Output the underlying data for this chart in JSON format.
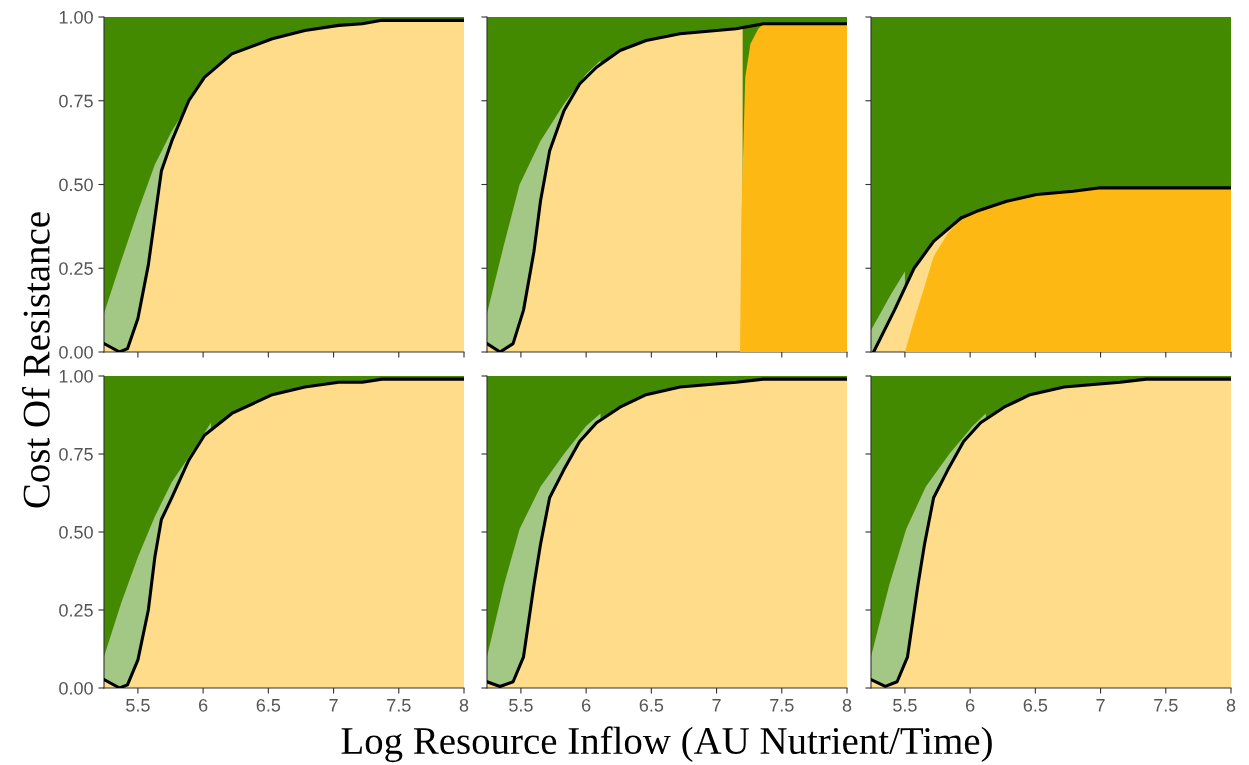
{
  "chart_data": [
    {
      "type": "area",
      "ylabel": "Cost Of Resistance",
      "xlim": [
        5.24,
        8
      ],
      "ylim": [
        0,
        1
      ],
      "tick_labels": "y",
      "xticks": [
        {
          "value": 5.5,
          "label": null
        },
        {
          "value": 6,
          "label": null
        },
        {
          "value": 6.5,
          "label": null
        },
        {
          "value": 7,
          "label": null
        },
        {
          "value": 7.5,
          "label": null
        },
        {
          "value": 8,
          "label": null
        }
      ],
      "yticks": [
        {
          "value": 0,
          "label": "0.00"
        },
        {
          "value": 0.25,
          "label": "0.25"
        },
        {
          "value": 0.5,
          "label": "0.50"
        },
        {
          "value": 0.75,
          "label": "0.75"
        },
        {
          "value": 1,
          "label": "1.00"
        }
      ],
      "bands": [
        {
          "axis": "y",
          "from": 0,
          "to": 1,
          "color": "#438a00"
        }
      ],
      "series": [
        {
          "color": "#a3c785",
          "x": [
            5.24,
            5.37,
            5.5,
            5.63,
            5.76,
            5.89,
            6.06
          ],
          "values": [
            0.115,
            0.27,
            0.42,
            0.56,
            0.66,
            0.74,
            0.845
          ]
        },
        {
          "color": "#fedc8a",
          "line_style": "solid",
          "x": [
            5.24,
            5.36,
            5.42,
            5.5,
            5.58,
            5.63,
            5.68,
            5.76,
            5.89,
            6.01,
            6.22,
            6.53,
            6.78,
            7.04,
            7.22,
            7.37,
            8.0
          ],
          "values": [
            0.025,
            0.0,
            0.01,
            0.1,
            0.26,
            0.4,
            0.54,
            0.63,
            0.75,
            0.82,
            0.89,
            0.935,
            0.96,
            0.975,
            0.98,
            0.99,
            0.99
          ]
        }
      ]
    },
    {
      "type": "area",
      "xlim": [
        5.24,
        8
      ],
      "ylim": [
        0,
        1
      ],
      "tick_labels": false,
      "xticks": [
        {
          "value": 5.5,
          "label": null
        },
        {
          "value": 6,
          "label": null
        },
        {
          "value": 6.5,
          "label": null
        },
        {
          "value": 7,
          "label": null
        },
        {
          "value": 7.5,
          "label": null
        },
        {
          "value": 8,
          "label": null
        }
      ],
      "yticks": [
        {
          "value": 0,
          "label": null
        },
        {
          "value": 0.25,
          "label": null
        },
        {
          "value": 0.5,
          "label": null
        },
        {
          "value": 0.75,
          "label": null
        },
        {
          "value": 1,
          "label": null
        }
      ],
      "bands": [
        {
          "axis": "y",
          "from": 0,
          "to": 1,
          "color": "#438a00"
        }
      ],
      "series": [
        {
          "color": "#a3c785",
          "x": [
            5.24,
            5.37,
            5.49,
            5.65,
            5.83,
            6.0,
            6.11
          ],
          "values": [
            0.115,
            0.32,
            0.5,
            0.63,
            0.74,
            0.83,
            0.87
          ]
        },
        {
          "color": "#fedc8a",
          "x": [
            5.24,
            5.34,
            5.44,
            5.52,
            5.6,
            5.65,
            5.72,
            5.83,
            5.95,
            6.08,
            6.26,
            6.46,
            6.72,
            7.15,
            7.2
          ],
          "values": [
            0.025,
            0.0,
            0.025,
            0.125,
            0.3,
            0.45,
            0.6,
            0.72,
            0.8,
            0.85,
            0.9,
            0.93,
            0.95,
            0.965,
            0.97
          ]
        },
        {
          "color": "#fdb813",
          "x": [
            7.18,
            7.19,
            7.22,
            7.26,
            7.32,
            7.36,
            8.0
          ],
          "values": [
            0.0,
            0.4,
            0.82,
            0.92,
            0.965,
            0.98,
            0.98
          ]
        },
        {
          "type": "line",
          "color": "#000000",
          "x": [
            5.24,
            5.34,
            5.44,
            5.52,
            5.6,
            5.65,
            5.72,
            5.83,
            5.95,
            6.08,
            6.26,
            6.46,
            6.72,
            7.15,
            7.36,
            8.0
          ],
          "values": [
            0.025,
            0.0,
            0.025,
            0.125,
            0.3,
            0.45,
            0.6,
            0.72,
            0.8,
            0.85,
            0.9,
            0.93,
            0.95,
            0.965,
            0.98,
            0.98
          ]
        }
      ]
    },
    {
      "type": "area",
      "xlim": [
        5.24,
        8
      ],
      "ylim": [
        0,
        1
      ],
      "tick_labels": false,
      "xticks": [
        {
          "value": 5.5,
          "label": null
        },
        {
          "value": 6,
          "label": null
        },
        {
          "value": 6.5,
          "label": null
        },
        {
          "value": 7,
          "label": null
        },
        {
          "value": 7.5,
          "label": null
        },
        {
          "value": 8,
          "label": null
        }
      ],
      "yticks": [
        {
          "value": 0,
          "label": null
        },
        {
          "value": 0.25,
          "label": null
        },
        {
          "value": 0.5,
          "label": null
        },
        {
          "value": 0.75,
          "label": null
        },
        {
          "value": 1,
          "label": null
        }
      ],
      "bands": [
        {
          "axis": "y",
          "from": 0,
          "to": 1,
          "color": "#438a00"
        }
      ],
      "series": [
        {
          "color": "#a3c785",
          "x": [
            5.24,
            5.39,
            5.5
          ],
          "values": [
            0.065,
            0.17,
            0.24
          ]
        },
        {
          "color": "#fedc8a",
          "line_style": "solid",
          "x": [
            5.26,
            5.42,
            5.57,
            5.72,
            5.93
          ],
          "values": [
            0.0,
            0.125,
            0.25,
            0.33,
            0.4
          ]
        },
        {
          "color": "#fdb813",
          "x": [
            5.5,
            5.57,
            5.65,
            5.72,
            5.83,
            5.93
          ],
          "values": [
            0.0,
            0.095,
            0.195,
            0.285,
            0.355,
            0.395
          ]
        },
        {
          "color": "#fdb813",
          "line_style": "solid",
          "x": [
            5.93,
            6.05,
            6.28,
            6.51,
            6.79,
            7.0,
            8.0
          ],
          "values": [
            0.4,
            0.42,
            0.45,
            0.47,
            0.48,
            0.49,
            0.49
          ]
        }
      ]
    },
    {
      "type": "area",
      "xlim": [
        5.24,
        8
      ],
      "ylim": [
        0,
        1
      ],
      "xticks": [
        5.5,
        6,
        6.5,
        7,
        7.5,
        8
      ],
      "yticks": [
        {
          "value": 0,
          "label": "0.00"
        },
        {
          "value": 0.25,
          "label": "0.25"
        },
        {
          "value": 0.5,
          "label": "0.50"
        },
        {
          "value": 0.75,
          "label": "0.75"
        },
        {
          "value": 1,
          "label": "1.00"
        }
      ],
      "bands": [
        {
          "axis": "y",
          "from": 0,
          "to": 1,
          "color": "#438a00"
        }
      ],
      "series": [
        {
          "color": "#a3c785",
          "x": [
            5.24,
            5.37,
            5.5,
            5.63,
            5.76,
            5.89,
            6.06
          ],
          "values": [
            0.1,
            0.27,
            0.42,
            0.55,
            0.66,
            0.74,
            0.85
          ]
        },
        {
          "color": "#fedc8a",
          "line_style": "solid",
          "x": [
            5.24,
            5.36,
            5.42,
            5.5,
            5.58,
            5.63,
            5.68,
            5.76,
            5.89,
            6.01,
            6.22,
            6.53,
            6.78,
            7.04,
            7.22,
            7.37,
            8.0
          ],
          "values": [
            0.027,
            0.0,
            0.01,
            0.09,
            0.25,
            0.42,
            0.54,
            0.61,
            0.73,
            0.81,
            0.88,
            0.94,
            0.965,
            0.98,
            0.98,
            0.99,
            0.99
          ]
        }
      ]
    },
    {
      "type": "area",
      "xlabel": "Log Resource Inflow (AU Nutrient/Time)",
      "xlim": [
        5.24,
        8
      ],
      "ylim": [
        0,
        1
      ],
      "tick_labels": "x",
      "xticks": [
        5.5,
        6,
        6.5,
        7,
        7.5,
        8
      ],
      "yticks": [
        {
          "value": 0,
          "label": null
        },
        {
          "value": 0.25,
          "label": null
        },
        {
          "value": 0.5,
          "label": null
        },
        {
          "value": 0.75,
          "label": null
        },
        {
          "value": 1,
          "label": null
        }
      ],
      "bands": [
        {
          "axis": "y",
          "from": 0,
          "to": 1,
          "color": "#438a00"
        }
      ],
      "series": [
        {
          "color": "#a3c785",
          "x": [
            5.24,
            5.37,
            5.49,
            5.65,
            5.83,
            6.0,
            6.11
          ],
          "values": [
            0.1,
            0.33,
            0.51,
            0.645,
            0.75,
            0.84,
            0.88
          ]
        },
        {
          "color": "#fedc8a",
          "line_style": "solid",
          "x": [
            5.24,
            5.34,
            5.44,
            5.52,
            5.6,
            5.65,
            5.72,
            5.83,
            5.95,
            6.08,
            6.26,
            6.46,
            6.72,
            7.15,
            7.36,
            8.0
          ],
          "values": [
            0.02,
            0.005,
            0.02,
            0.1,
            0.33,
            0.46,
            0.61,
            0.7,
            0.79,
            0.85,
            0.9,
            0.94,
            0.965,
            0.98,
            0.99,
            0.99
          ]
        }
      ]
    },
    {
      "type": "area",
      "xlim": [
        5.24,
        8
      ],
      "ylim": [
        0,
        1
      ],
      "tick_labels": "x",
      "xticks": [
        5.5,
        6,
        6.5,
        7,
        7.5,
        8
      ],
      "yticks": [
        {
          "value": 0,
          "label": null
        },
        {
          "value": 0.25,
          "label": null
        },
        {
          "value": 0.5,
          "label": null
        },
        {
          "value": 0.75,
          "label": null
        },
        {
          "value": 1,
          "label": null
        }
      ],
      "bands": [
        {
          "axis": "y",
          "from": 0,
          "to": 1,
          "color": "#438a00"
        }
      ],
      "series": [
        {
          "color": "#a3c785",
          "x": [
            5.24,
            5.38,
            5.51,
            5.66,
            5.84,
            6.02,
            6.12
          ],
          "values": [
            0.1,
            0.33,
            0.51,
            0.645,
            0.75,
            0.84,
            0.88
          ]
        },
        {
          "color": "#fedc8a",
          "line_style": "solid",
          "x": [
            5.24,
            5.35,
            5.44,
            5.52,
            5.6,
            5.65,
            5.72,
            5.83,
            5.95,
            6.08,
            6.26,
            6.46,
            6.72,
            7.15,
            7.35,
            8.0
          ],
          "values": [
            0.027,
            0.005,
            0.02,
            0.1,
            0.33,
            0.46,
            0.61,
            0.7,
            0.79,
            0.85,
            0.9,
            0.94,
            0.965,
            0.98,
            0.99,
            0.99
          ]
        }
      ]
    }
  ]
}
